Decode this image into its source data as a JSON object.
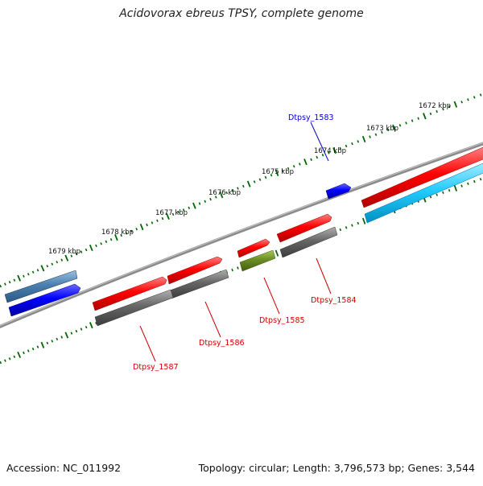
{
  "title": "Acidovorax ebreus TPSY, complete genome",
  "ticks": [
    "1672 kbp",
    "1673 kbp",
    "1674 kbp",
    "1675 kbp",
    "1676 kbp",
    "1677 kbp",
    "1678 kbp",
    "1679 kbp"
  ],
  "genes": [
    {
      "label": "Dtpsy_1583",
      "color": "#0000cc"
    },
    {
      "label": "Dtpsy_1584",
      "color": "#cc0000"
    },
    {
      "label": "Dtpsy_1585",
      "color": "#cc0000"
    },
    {
      "label": "Dtpsy_1586",
      "color": "#cc0000"
    },
    {
      "label": "Dtpsy_1587",
      "color": "#cc0000"
    }
  ],
  "colors": {
    "tick": "#006600",
    "backbone": "#8a8a8a",
    "forward": "#ff0000",
    "reverse": "#0000ff",
    "cds_gray": "#666666",
    "light_blue": "#22ccff",
    "steel_blue": "#4a7fb0",
    "olive": "#6b8e23"
  },
  "footer": {
    "accession": "Accession: NC_011992",
    "summary": "Topology: circular; Length: 3,796,573 bp; Genes: 3,544"
  }
}
